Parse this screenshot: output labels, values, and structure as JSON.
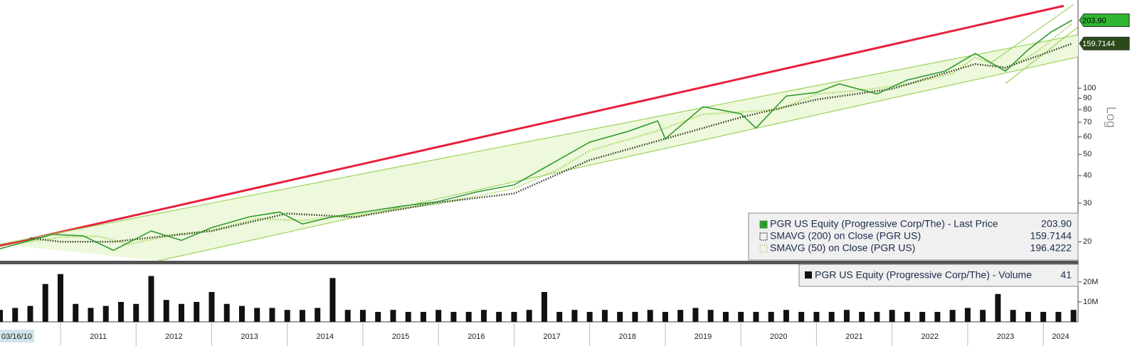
{
  "chart_data": [
    {
      "type": "line",
      "log_scale": true,
      "axis_label": "Log",
      "start_label": "03/16/10",
      "xlim": [
        2010.2,
        2024.46
      ],
      "ylim": [
        16.4,
        252
      ],
      "yticks": [
        20,
        30,
        40,
        50,
        60,
        70,
        80,
        90,
        100
      ],
      "series": [
        {
          "name": "PGR US Equity (Progressive Corp/The) - Last Price",
          "last_label": "203.90",
          "color": "#2e9a2e",
          "style": "solid",
          "x": [
            2010.2,
            2010.6,
            2010.9,
            2011.3,
            2011.7,
            2012.2,
            2012.6,
            2013.0,
            2013.5,
            2013.9,
            2014.2,
            2014.6,
            2015.0,
            2015.5,
            2016.0,
            2016.5,
            2017.0,
            2017.5,
            2018.0,
            2018.5,
            2018.9,
            2019.0,
            2019.5,
            2020.0,
            2020.2,
            2020.6,
            2021.0,
            2021.3,
            2021.8,
            2022.2,
            2022.7,
            2023.1,
            2023.3,
            2023.5,
            2023.8,
            2024.1,
            2024.38
          ],
          "values": [
            18.6,
            20.3,
            21.6,
            21.3,
            18.3,
            22.4,
            20.3,
            23.2,
            26.0,
            27.3,
            24.1,
            26.0,
            27.3,
            29.0,
            30.5,
            33.7,
            36.3,
            45.4,
            56.8,
            63.5,
            71.0,
            58.9,
            82.4,
            76.5,
            65.9,
            92.1,
            95.6,
            104.6,
            94.2,
            109.0,
            119.6,
            144.0,
            131.0,
            119.6,
            149.5,
            180.0,
            203.9
          ]
        },
        {
          "name": "SMAVG (200)  on Close (PGR US)",
          "last_label": "159.7144",
          "color": "#2b3a1e",
          "style": "dotted",
          "x": [
            2010.6,
            2011.0,
            2011.7,
            2013.0,
            2014.0,
            2014.9,
            2016.0,
            2017.0,
            2018.0,
            2019.0,
            2020.0,
            2021.0,
            2022.0,
            2023.1,
            2023.5,
            2024.38
          ],
          "values": [
            20.8,
            20.0,
            20.0,
            22.4,
            26.9,
            25.9,
            30.2,
            33.2,
            47.1,
            58.9,
            73.7,
            88.8,
            99.3,
            128.8,
            124.1,
            159.7144
          ]
        },
        {
          "name": "SMAVG (50)  on Close (PGR US)",
          "last_label": "196.4222",
          "color": "#a8d860",
          "style": "dotted",
          "x": [
            2010.5,
            2011.0,
            2011.5,
            2011.9,
            2012.5,
            2013.0,
            2013.6,
            2014.2,
            2015.0,
            2016.0,
            2017.0,
            2017.6,
            2018.0,
            2018.9,
            2019.5,
            2020.0,
            2020.5,
            2021.0,
            2021.6,
            2022.2,
            2022.8,
            2023.1,
            2023.5,
            2023.9,
            2024.38
          ],
          "values": [
            19.8,
            21.0,
            21.2,
            19.5,
            21.5,
            22.5,
            25.5,
            25.0,
            26.8,
            29.8,
            35.0,
            43.0,
            52.0,
            64.0,
            76.0,
            78.0,
            80.0,
            94.0,
            98.0,
            104.0,
            117.0,
            138.0,
            122.0,
            145.0,
            196.4222
          ]
        }
      ],
      "trend_lines": [
        {
          "color": "#e8203c",
          "x": [
            2010.2,
            2024.27
          ],
          "values": [
            19.2,
            237
          ]
        },
        {
          "color": "#9ad45a",
          "x": [
            2012.3,
            2024.46
          ],
          "values": [
            16.4,
            138.8
          ]
        },
        {
          "color": "#9ad45a",
          "x": [
            2010.2,
            2024.46
          ],
          "values": [
            19.5,
            175
          ]
        },
        {
          "color": "#9ad45a",
          "x": [
            2023.5,
            2024.46
          ],
          "values": [
            105,
            190
          ]
        },
        {
          "color": "#9ad45a",
          "x": [
            2023.3,
            2024.4
          ],
          "values": [
            130,
            240
          ]
        }
      ]
    },
    {
      "type": "bar",
      "color": "#111111",
      "series": [
        {
          "name": "PGR US Equity (Progressive Corp/The) - Volume",
          "last_label": "41"
        }
      ],
      "xlim": [
        2010.2,
        2024.46
      ],
      "ylim": [
        0,
        28900000
      ],
      "yticks": [
        {
          "value": 10000000,
          "label": "10M"
        },
        {
          "value": 20000000,
          "label": "20M"
        }
      ],
      "xticks": [
        2011,
        2012,
        2013,
        2014,
        2015,
        2016,
        2017,
        2018,
        2019,
        2020,
        2021,
        2022,
        2023,
        2024
      ],
      "x": [
        2010.2,
        2010.4,
        2010.6,
        2010.8,
        2011.0,
        2011.2,
        2011.4,
        2011.6,
        2011.8,
        2012.0,
        2012.2,
        2012.4,
        2012.6,
        2012.8,
        2013.0,
        2013.2,
        2013.4,
        2013.6,
        2013.8,
        2014.0,
        2014.2,
        2014.4,
        2014.6,
        2014.8,
        2015.0,
        2015.2,
        2015.4,
        2015.6,
        2015.8,
        2016.0,
        2016.2,
        2016.4,
        2016.6,
        2016.8,
        2017.0,
        2017.2,
        2017.4,
        2017.6,
        2017.8,
        2018.0,
        2018.2,
        2018.4,
        2018.6,
        2018.8,
        2019.0,
        2019.2,
        2019.4,
        2019.6,
        2019.8,
        2020.0,
        2020.2,
        2020.4,
        2020.6,
        2020.8,
        2021.0,
        2021.2,
        2021.4,
        2021.6,
        2021.8,
        2022.0,
        2022.2,
        2022.4,
        2022.6,
        2022.8,
        2023.0,
        2023.2,
        2023.4,
        2023.6,
        2023.8,
        2024.0,
        2024.2,
        2024.4
      ],
      "values": [
        6000000,
        7000000,
        8000000,
        19000000,
        24000000,
        9000000,
        7000000,
        8000000,
        10000000,
        9000000,
        23000000,
        11000000,
        9000000,
        10000000,
        15000000,
        9000000,
        8000000,
        7000000,
        7000000,
        6000000,
        6000000,
        7000000,
        22000000,
        6000000,
        6000000,
        5000000,
        6000000,
        5000000,
        5000000,
        6000000,
        5000000,
        5000000,
        6000000,
        5000000,
        5000000,
        6000000,
        15000000,
        5000000,
        6000000,
        5000000,
        6000000,
        5000000,
        5000000,
        6000000,
        5000000,
        6000000,
        7000000,
        6000000,
        5000000,
        5000000,
        5000000,
        5000000,
        6000000,
        5000000,
        5000000,
        5000000,
        6000000,
        5000000,
        5000000,
        6000000,
        5000000,
        5000000,
        5000000,
        6000000,
        7000000,
        6000000,
        14000000,
        6000000,
        5000000,
        5000000,
        5000000,
        6000000
      ]
    }
  ]
}
